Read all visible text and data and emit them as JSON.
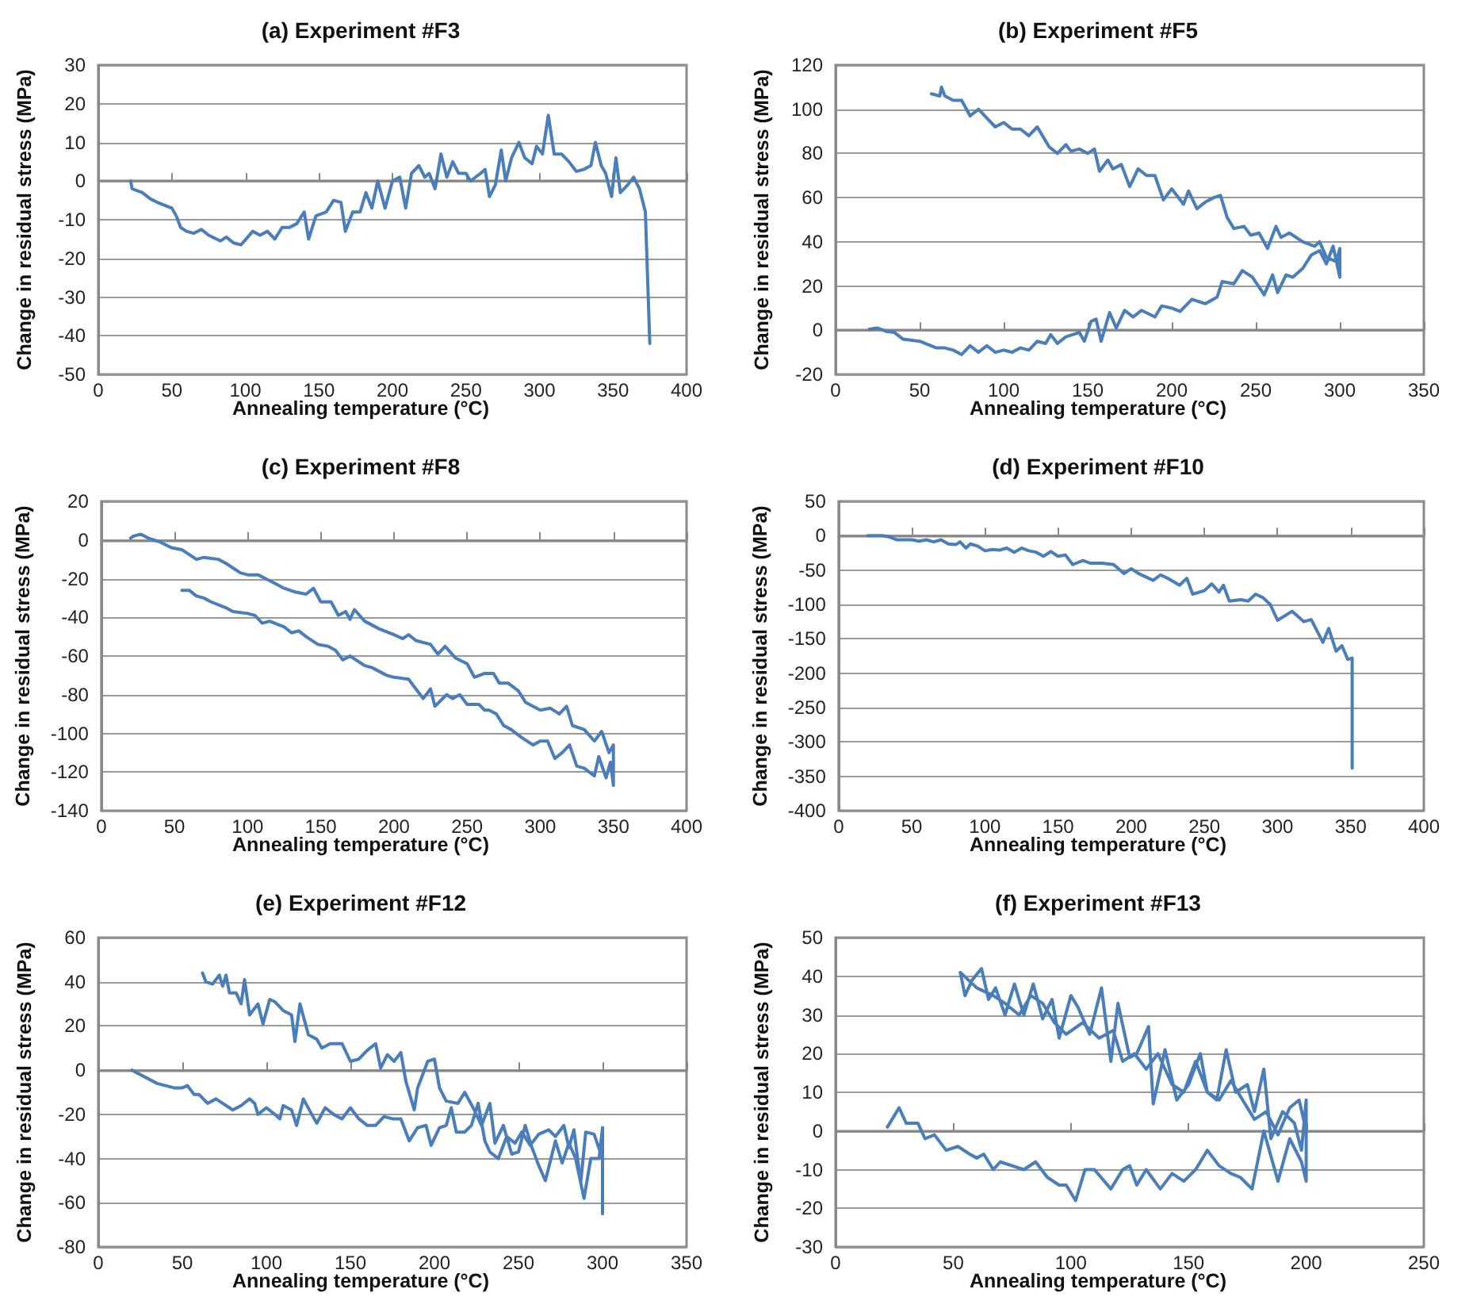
{
  "chart_data": [
    {
      "type": "line",
      "title": "(a) Experiment #F3",
      "xlabel": "Annealing temperature (°C)",
      "ylabel": "Change in residual stress (MPa)",
      "xlim": [
        0,
        400
      ],
      "xticks": [
        0,
        50,
        100,
        150,
        200,
        250,
        300,
        350,
        400
      ],
      "ylim": [
        -50,
        30
      ],
      "yticks": [
        -50,
        -40,
        -30,
        -20,
        -10,
        0,
        10,
        20,
        30
      ],
      "grid": "y",
      "marker": "none",
      "line_style": "solid",
      "series": [
        {
          "color": "#4a7ebb",
          "x": [
            22,
            23,
            30,
            35,
            40,
            50,
            53,
            56,
            60,
            65,
            70,
            75,
            83,
            87,
            92,
            97,
            105,
            110,
            115,
            120,
            125,
            130,
            135,
            140,
            143,
            148,
            155,
            160,
            165,
            168,
            173,
            178,
            182,
            186,
            190,
            195,
            200,
            205,
            209,
            213,
            218,
            222,
            225,
            229,
            233,
            237,
            241,
            245,
            250,
            253,
            260,
            263,
            266,
            270,
            274,
            277,
            281,
            286,
            290,
            295,
            298,
            302,
            306,
            310,
            315,
            320,
            325,
            330,
            335,
            338,
            342,
            345,
            349,
            352,
            355,
            360,
            364,
            368,
            372,
            375
          ],
          "values": [
            0,
            -2,
            -3,
            -4.5,
            -5.5,
            -7,
            -9,
            -12,
            -13,
            -13.5,
            -12.5,
            -14,
            -15.5,
            -14.5,
            -16,
            -16.5,
            -13,
            -14,
            -13,
            -15,
            -12,
            -12,
            -11,
            -8,
            -15,
            -9,
            -8,
            -5,
            -5.5,
            -13,
            -8,
            -8,
            -3,
            -7,
            0,
            -7,
            0,
            1,
            -7,
            2,
            4,
            1,
            2,
            -2,
            7,
            1,
            5,
            2,
            2,
            0,
            2,
            3,
            -4,
            -1,
            8,
            0,
            6,
            10,
            6,
            4.5,
            9,
            7,
            17,
            7,
            7,
            5,
            2.5,
            3,
            4,
            10,
            4,
            2,
            -4,
            6,
            -3,
            -1,
            1,
            -2,
            -8,
            -42
          ]
        }
      ]
    },
    {
      "type": "line",
      "title": "(b) Experiment #F5",
      "xlabel": "Annealing temperature (°C)",
      "ylabel": "Change in residual stress (MPa)",
      "xlim": [
        0,
        350
      ],
      "xticks": [
        0,
        50,
        100,
        150,
        200,
        250,
        300,
        350
      ],
      "ylim": [
        -20,
        120
      ],
      "yticks": [
        -20,
        0,
        20,
        40,
        60,
        80,
        100,
        120
      ],
      "grid": "y",
      "marker": "none",
      "line_style": "solid",
      "series": [
        {
          "color": "#4a7ebb",
          "x": [
            20,
            25,
            30,
            35,
            40,
            50,
            60,
            65,
            70,
            75,
            80,
            85,
            90,
            95,
            100,
            105,
            110,
            115,
            120,
            125,
            128,
            132,
            137,
            145,
            148,
            152,
            155,
            158,
            163,
            167,
            172,
            177,
            182,
            190,
            194,
            200,
            205,
            212,
            220,
            227,
            230,
            237,
            242,
            248,
            255,
            260,
            263,
            268,
            272,
            278,
            283,
            288,
            292,
            296,
            300,
            300,
            298,
            292,
            288,
            285,
            278,
            270,
            265,
            262,
            257,
            252,
            247,
            243,
            237,
            233,
            229,
            225,
            220,
            215,
            210,
            207,
            200,
            195,
            190,
            185,
            180,
            175,
            170,
            165,
            162,
            157,
            154,
            150,
            145,
            140,
            137,
            132,
            127,
            120,
            115,
            110,
            105,
            100,
            95,
            90,
            85,
            80,
            75,
            70,
            65,
            63,
            62,
            57
          ],
          "values": [
            0.5,
            1,
            -0.5,
            -1,
            -4,
            -5,
            -8,
            -8,
            -9,
            -11,
            -7,
            -10,
            -7,
            -10,
            -9,
            -10,
            -8,
            -9,
            -5,
            -6,
            -2,
            -6,
            -3,
            -1,
            -5,
            4,
            5,
            -5,
            8,
            1,
            9,
            6,
            9,
            6,
            11,
            10,
            8.5,
            14,
            12,
            15,
            22,
            21,
            27,
            24,
            16,
            25,
            17,
            25,
            24,
            28,
            34,
            36,
            30,
            38,
            24,
            37,
            31,
            33,
            40,
            38,
            40,
            44,
            42,
            47,
            37,
            44,
            43,
            47,
            46,
            51,
            61,
            60,
            58,
            55,
            63,
            57,
            64,
            59,
            70,
            70,
            73,
            65,
            75,
            73,
            77,
            72,
            82,
            80,
            82,
            81,
            84,
            80,
            83,
            92,
            88,
            91,
            91,
            94,
            92,
            96,
            100,
            97,
            104,
            104,
            106,
            110,
            106,
            107
          ]
        }
      ]
    },
    {
      "type": "line",
      "title": "(c) Experiment #F8",
      "xlabel": "Annealing temperature (°C)",
      "ylabel": "Change in residual stress (MPa)",
      "xlim": [
        0,
        400
      ],
      "xticks": [
        0,
        50,
        100,
        150,
        200,
        250,
        300,
        350,
        400
      ],
      "ylim": [
        -140,
        20
      ],
      "yticks": [
        -140,
        -120,
        -100,
        -80,
        -60,
        -40,
        -20,
        0,
        20
      ],
      "grid": "y",
      "marker": "none",
      "line_style": "solid",
      "series": [
        {
          "color": "#4a7ebb",
          "x": [
            20,
            22,
            27,
            32,
            40,
            48,
            55,
            65,
            70,
            80,
            85,
            95,
            100,
            107,
            115,
            120,
            125,
            133,
            140,
            145,
            150,
            157,
            162,
            167,
            170,
            173,
            180,
            190,
            200,
            206,
            210,
            215,
            225,
            230,
            235,
            242,
            250,
            255,
            262,
            268,
            272,
            278,
            285,
            290,
            300,
            307,
            313,
            318,
            322,
            330,
            337,
            342,
            347,
            350,
            350,
            348,
            345,
            340,
            337,
            330,
            325,
            320,
            315,
            310,
            305,
            300,
            295,
            287,
            280,
            275,
            270,
            265,
            262,
            258,
            250,
            245,
            240,
            236,
            228,
            225,
            220,
            215,
            210,
            200,
            195,
            185,
            180,
            170,
            165,
            160,
            155,
            148,
            140,
            135,
            130,
            125,
            115,
            110,
            105,
            100,
            90,
            85,
            75,
            70,
            65,
            60,
            55
          ],
          "values": [
            1,
            2,
            3,
            1,
            -1,
            -4,
            -5,
            -10,
            -9,
            -10,
            -12,
            -17,
            -18,
            -18,
            -21,
            -23,
            -25,
            -27,
            -28,
            -25,
            -32,
            -32,
            -39,
            -37,
            -41,
            -36,
            -42,
            -46,
            -49,
            -51,
            -49,
            -52,
            -54,
            -59,
            -55,
            -61,
            -64,
            -71,
            -69,
            -69,
            -74,
            -74,
            -78,
            -84,
            -88,
            -87,
            -90,
            -86,
            -96,
            -98,
            -104,
            -99,
            -110,
            -106,
            -127,
            -115,
            -123,
            -112,
            -122,
            -118,
            -117,
            -106,
            -110,
            -113,
            -104,
            -104,
            -106,
            -102,
            -98,
            -96,
            -90,
            -88,
            -88,
            -85,
            -85,
            -80,
            -82,
            -80,
            -86,
            -77,
            -82,
            -77,
            -72,
            -71,
            -70,
            -66,
            -65,
            -60,
            -62,
            -57,
            -55,
            -54,
            -50,
            -47,
            -48,
            -45,
            -42,
            -43,
            -39,
            -38,
            -37,
            -35,
            -32,
            -30,
            -29,
            -26,
            -26
          ]
        }
      ]
    },
    {
      "type": "line",
      "title": "(d) Experiment #F10",
      "xlabel": "Annealing temperature (°C)",
      "ylabel": "Change in residual stress (MPa)",
      "xlim": [
        0,
        400
      ],
      "xticks": [
        0,
        50,
        100,
        150,
        200,
        250,
        300,
        350,
        400
      ],
      "ylim": [
        -400,
        50
      ],
      "yticks": [
        -400,
        -350,
        -300,
        -250,
        -200,
        -150,
        -100,
        -50,
        0,
        50
      ],
      "grid": "y",
      "marker": "none",
      "line_style": "solid",
      "series": [
        {
          "color": "#4a7ebb",
          "x": [
            20,
            30,
            35,
            40,
            50,
            55,
            60,
            65,
            70,
            75,
            80,
            83,
            87,
            90,
            95,
            100,
            105,
            110,
            115,
            120,
            125,
            130,
            135,
            140,
            145,
            150,
            155,
            160,
            167,
            172,
            180,
            188,
            195,
            200,
            205,
            210,
            215,
            220,
            225,
            233,
            238,
            242,
            250,
            255,
            260,
            263,
            267,
            275,
            280,
            285,
            290,
            295,
            300,
            310,
            318,
            323,
            331,
            335,
            340,
            344,
            348,
            351,
            351
          ],
          "values": [
            0,
            0,
            -2,
            -6,
            -6,
            -8,
            -6,
            -9,
            -6,
            -12,
            -13,
            -9,
            -18,
            -12,
            -15,
            -22,
            -20,
            -21,
            -18,
            -24,
            -18,
            -22,
            -24,
            -30,
            -23,
            -30,
            -28,
            -42,
            -36,
            -40,
            -40,
            -42,
            -55,
            -48,
            -55,
            -60,
            -65,
            -57,
            -62,
            -72,
            -62,
            -85,
            -80,
            -70,
            -82,
            -72,
            -95,
            -93,
            -95,
            -85,
            -90,
            -100,
            -123,
            -110,
            -125,
            -122,
            -155,
            -135,
            -168,
            -160,
            -180,
            -178,
            -338
          ]
        }
      ]
    },
    {
      "type": "line",
      "title": "(e) Experiment #F12",
      "xlabel": "Annealing temperature (°C)",
      "ylabel": "Change in residual stress (MPa)",
      "xlim": [
        0,
        350
      ],
      "xticks": [
        0,
        50,
        100,
        150,
        200,
        250,
        300,
        350
      ],
      "ylim": [
        -80,
        60
      ],
      "yticks": [
        -80,
        -60,
        -40,
        -20,
        0,
        20,
        40,
        60
      ],
      "grid": "y",
      "marker": "none",
      "line_style": "solid",
      "series": [
        {
          "color": "#4a7ebb",
          "x": [
            20,
            25,
            35,
            45,
            50,
            53,
            57,
            60,
            65,
            70,
            80,
            85,
            90,
            93,
            95,
            100,
            105,
            108,
            110,
            115,
            118,
            122,
            127,
            130,
            135,
            140,
            145,
            150,
            155,
            160,
            165,
            170,
            175,
            180,
            185,
            190,
            195,
            198,
            203,
            207,
            210,
            213,
            218,
            222,
            226,
            230,
            233,
            238,
            243,
            248,
            252,
            257,
            262,
            268,
            272,
            277,
            280,
            283,
            287,
            290,
            295,
            300,
            300,
            300,
            298,
            293,
            289,
            284,
            280,
            276,
            272,
            266,
            262,
            258,
            254,
            250,
            246,
            241,
            236,
            233,
            228,
            223,
            218,
            214,
            207,
            203,
            200,
            196,
            190,
            188,
            183,
            180,
            176,
            172,
            168,
            165,
            160,
            155,
            150,
            145,
            138,
            133,
            130,
            125,
            120,
            117,
            115,
            110,
            105,
            102,
            98,
            95,
            90,
            87,
            85,
            82,
            78,
            76,
            74,
            72,
            68,
            64,
            62
          ],
          "values": [
            0,
            -2,
            -6,
            -8,
            -8,
            -7,
            -11,
            -11,
            -15,
            -13,
            -18,
            -16,
            -13,
            -15,
            -20,
            -17,
            -20,
            -22,
            -16,
            -18,
            -25,
            -13,
            -20,
            -24,
            -17,
            -20,
            -22,
            -17,
            -22,
            -25,
            -25,
            -21,
            -22,
            -22,
            -32,
            -26,
            -25,
            -34,
            -26,
            -25,
            -17,
            -28,
            -28,
            -25,
            -15,
            -32,
            -37,
            -40,
            -30,
            -33,
            -28,
            -34,
            -29,
            -27,
            -30,
            -25,
            -35,
            -27,
            -51,
            -28,
            -29,
            -40,
            -65,
            -26,
            -40,
            -40,
            -58,
            -40,
            -33,
            -42,
            -32,
            -50,
            -43,
            -35,
            -25,
            -37,
            -38,
            -25,
            -33,
            -15,
            -25,
            -17,
            -10,
            -15,
            -14,
            -8,
            5,
            4,
            -8,
            -18,
            -5,
            8,
            4,
            7,
            1,
            12,
            9,
            5,
            4,
            12,
            12,
            10,
            14,
            16,
            30,
            13,
            25,
            27,
            31,
            32,
            21,
            30,
            25,
            41,
            30,
            35,
            35,
            43,
            38,
            43,
            39,
            40,
            44
          ]
        }
      ]
    },
    {
      "type": "line",
      "title": "(f) Experiment #F13",
      "xlabel": "Annealing temperature (°C)",
      "ylabel": "Change in residual stress (MPa)",
      "xlim": [
        0,
        250
      ],
      "xticks": [
        0,
        50,
        100,
        150,
        200,
        250
      ],
      "ylim": [
        -30,
        50
      ],
      "yticks": [
        -30,
        -20,
        -10,
        0,
        10,
        20,
        30,
        40,
        50
      ],
      "grid": "y",
      "marker": "none",
      "line_style": "solid",
      "series": [
        {
          "color": "#4a7ebb",
          "x": [
            22,
            27,
            30,
            35,
            38,
            42,
            47,
            52,
            57,
            60,
            63,
            67,
            70,
            75,
            80,
            85,
            90,
            95,
            98,
            102,
            106,
            110,
            117,
            122,
            125,
            128,
            132,
            138,
            143,
            148,
            153,
            158,
            163,
            168,
            172,
            177,
            182,
            188,
            193,
            198,
            200,
            200,
            198,
            195,
            190,
            185,
            182,
            178,
            175,
            170,
            166,
            162,
            158,
            155,
            150,
            145,
            140,
            135,
            133,
            128,
            125,
            120,
            117,
            113,
            108,
            103,
            100,
            95,
            92,
            88,
            84,
            80,
            76,
            72,
            68,
            65,
            62,
            58,
            55,
            53,
            60,
            67,
            72,
            78,
            83,
            88,
            93,
            98,
            105,
            112,
            118,
            122,
            127,
            132,
            137,
            143,
            148,
            153,
            158,
            163,
            168,
            173,
            178,
            183,
            188,
            193,
            197,
            200
          ],
          "values": [
            1,
            6,
            2,
            2,
            -2,
            -1,
            -5,
            -4,
            -6,
            -7,
            -6,
            -10,
            -8,
            -9,
            -10,
            -8,
            -12,
            -14,
            -14,
            -18,
            -10,
            -10,
            -15,
            -10,
            -9,
            -14,
            -10,
            -15,
            -11,
            -13,
            -10,
            -5,
            -9,
            -11,
            -12,
            -15,
            0,
            -13,
            -2,
            -8,
            -13,
            8,
            -5,
            2,
            5,
            -2,
            16,
            5,
            12,
            10,
            21,
            8,
            10,
            20,
            12,
            8,
            21,
            7,
            27,
            20,
            19,
            33,
            18,
            37,
            25,
            32,
            35,
            24,
            34,
            29,
            38,
            30,
            38,
            30,
            37,
            34,
            42,
            39,
            35,
            41,
            37,
            35,
            33,
            30,
            35,
            33,
            28,
            25,
            28,
            24,
            26,
            18,
            20,
            16,
            20,
            12,
            10,
            18,
            10,
            8,
            13,
            8,
            3,
            5,
            -1,
            6,
            8,
            0
          ]
        }
      ]
    }
  ]
}
